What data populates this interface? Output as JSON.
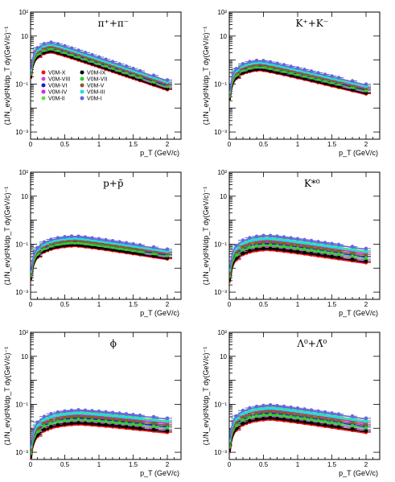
{
  "figure": {
    "ylabel": "(1/N_ev)d²N/dp_T dy(GeV/c)⁻¹",
    "xlabel": "p_T (GeV/c)"
  },
  "legend": {
    "entries": [
      {
        "name": "V0M-X",
        "color": "#ee1111"
      },
      {
        "name": "V0M-IX",
        "color": "#000000"
      },
      {
        "name": "V0M-VIII",
        "color": "#cc44cc"
      },
      {
        "name": "V0M-VII",
        "color": "#33cc33"
      },
      {
        "name": "V0M-VI",
        "color": "#1a1acc"
      },
      {
        "name": "V0M-V",
        "color": "#8a5a2a"
      },
      {
        "name": "V0M-IV",
        "color": "#dd22dd"
      },
      {
        "name": "V0M-III",
        "color": "#22dddd"
      },
      {
        "name": "V0M-II",
        "color": "#66dd44"
      },
      {
        "name": "V0M-I",
        "color": "#6666dd"
      }
    ]
  },
  "chart_data": [
    {
      "type": "scatter",
      "title": "π⁺+π⁻",
      "log_y": true,
      "xlim": [
        0,
        2.2
      ],
      "ylim_exp": [
        -3.3,
        2
      ],
      "x_ticks": [
        "0",
        "0.5",
        "1",
        "1.5",
        "2"
      ],
      "y_ticks": [
        "10⁻³",
        "10⁻¹",
        "10",
        "10²"
      ],
      "shape": {
        "peak_x": 0.3,
        "peak_y": 5.0,
        "end_y": 0.12,
        "spread": 3.0
      }
    },
    {
      "type": "scatter",
      "title": "K⁺+K⁻",
      "log_y": true,
      "xlim": [
        0,
        2.2
      ],
      "ylim_exp": [
        -3.3,
        2
      ],
      "x_ticks": [
        "0",
        "0.5",
        "1",
        "1.5",
        "2"
      ],
      "y_ticks": [
        "10⁻³",
        "10⁻¹",
        "10",
        "10²"
      ],
      "shape": {
        "peak_x": 0.45,
        "peak_y": 0.9,
        "end_y": 0.08,
        "spread": 3.0
      }
    },
    {
      "type": "scatter",
      "title": "p+p̄",
      "log_y": true,
      "xlim": [
        0,
        2.2
      ],
      "ylim_exp": [
        -3.3,
        2
      ],
      "x_ticks": [
        "0",
        "0.5",
        "1",
        "1.5",
        "2"
      ],
      "y_ticks": [
        "10⁻³",
        "10⁻¹",
        "10",
        "10²"
      ],
      "shape": {
        "peak_x": 0.65,
        "peak_y": 0.2,
        "end_y": 0.05,
        "spread": 3.0
      }
    },
    {
      "type": "scatter",
      "title": "K*⁰",
      "log_y": true,
      "xlim": [
        0,
        2.2
      ],
      "ylim_exp": [
        -3.3,
        2
      ],
      "x_ticks": [
        "0",
        "0.5",
        "1",
        "1.5",
        "2"
      ],
      "y_ticks": [
        "10⁻³",
        "10⁻¹",
        "10",
        "10²"
      ],
      "shape": {
        "peak_x": 0.55,
        "peak_y": 0.2,
        "end_y": 0.05,
        "spread": 5.0
      }
    },
    {
      "type": "scatter",
      "title": "ϕ",
      "log_y": true,
      "xlim": [
        0,
        2.2
      ],
      "ylim_exp": [
        -3.3,
        2
      ],
      "x_ticks": [
        "0",
        "0.5",
        "1",
        "1.5",
        "2"
      ],
      "y_ticks": [
        "10⁻³",
        "10⁻¹",
        "10",
        "10²"
      ],
      "shape": {
        "peak_x": 0.7,
        "peak_y": 0.05,
        "end_y": 0.02,
        "spread": 5.0
      }
    },
    {
      "type": "scatter",
      "title": "Λ⁰+Λ̄⁰",
      "log_y": true,
      "xlim": [
        0,
        2.2
      ],
      "ylim_exp": [
        -3.3,
        2
      ],
      "x_ticks": [
        "0",
        "0.5",
        "1",
        "1.5",
        "2"
      ],
      "y_ticks": [
        "10⁻³",
        "10⁻¹",
        "10",
        "10²"
      ],
      "shape": {
        "peak_x": 0.6,
        "peak_y": 0.08,
        "end_y": 0.02,
        "spread": 5.0
      }
    }
  ]
}
